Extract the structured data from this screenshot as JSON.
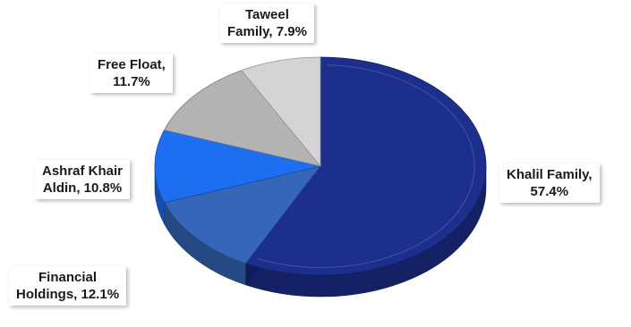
{
  "chart_data": {
    "type": "pie",
    "style": "3d",
    "slices": [
      {
        "name": "Khalil Family",
        "value": 57.4,
        "color": "#1c2f8c",
        "label_line1": "Khalil Family,",
        "label_line2": "57.4%"
      },
      {
        "name": "Financial Holdings",
        "value": 12.1,
        "color": "#3566b8",
        "label_line1": "Financial",
        "label_line2": "Holdings, 12.1%"
      },
      {
        "name": "Ashraf Khair Aldin",
        "value": 10.8,
        "color": "#1d6ef0",
        "label_line1": "Ashraf Khair",
        "label_line2": "Aldin, 10.8%"
      },
      {
        "name": "Free Float",
        "value": 11.7,
        "color": "#b3b3b3",
        "label_line1": "Free Float,",
        "label_line2": "11.7%"
      },
      {
        "name": "Taweel Family",
        "value": 7.9,
        "color": "#d4d4d6",
        "label_line1": "Taweel",
        "label_line2": "Family, 7.9%"
      }
    ]
  }
}
